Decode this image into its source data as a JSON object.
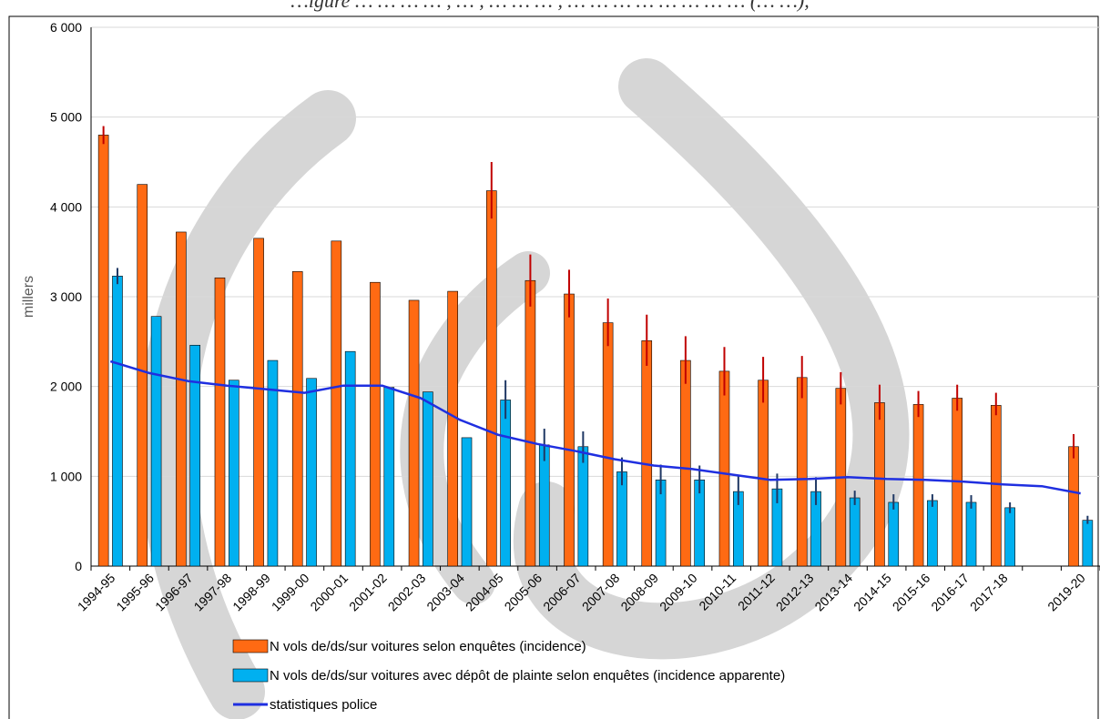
{
  "chart_data": {
    "type": "bar",
    "title": "",
    "title_strip": "…igure … … … … , … ,  … …  … , … … … … … … … … (… …),",
    "ylabel": "millers",
    "xlabel": "",
    "ylim": [
      0,
      6000
    ],
    "yticks": [
      0,
      1000,
      2000,
      3000,
      4000,
      5000,
      6000
    ],
    "ytick_labels": [
      "0",
      "1 000",
      "2 000",
      "3 000",
      "4 000",
      "5 000",
      "6 000"
    ],
    "grid": true,
    "legend_position": "bottom",
    "categories": [
      "1994-95",
      "1995-96",
      "1996-97",
      "1997-98",
      "1998-99",
      "1999-00",
      "2000-01",
      "2001-02",
      "2002-03",
      "2003-04",
      "2004-05",
      "2005-06",
      "2006-07",
      "2007-08",
      "2008-09",
      "2009-10",
      "2010-11",
      "2011-12",
      "2012-13",
      "2013-14",
      "2014-15",
      "2015-16",
      "2016-17",
      "2017-18",
      "2018-19",
      "2019-20"
    ],
    "tick_labels": [
      "1994-95",
      "1995-96",
      "1996-97",
      "1997-98",
      "1998-99",
      "1999-00",
      "2000-01",
      "2001-02",
      "2002-03",
      "2003-04",
      "2004-05",
      "2005-06",
      "2006-07",
      "2007-08",
      "2008-09",
      "2009-10",
      "2010-11",
      "2011-12",
      "2012-13",
      "2013-14",
      "2014-15",
      "2015-16",
      "2016-17",
      "2017-18",
      "",
      "2019-20"
    ],
    "series": [
      {
        "name": "N vols de/ds/sur voitures selon enquêtes (incidence)",
        "kind": "bar",
        "color": "#FF6A13",
        "error_color": "#C00000",
        "values": [
          4800,
          4250,
          3720,
          3210,
          3650,
          3280,
          3620,
          3160,
          2960,
          3060,
          4180,
          3180,
          3030,
          2710,
          2510,
          2290,
          2170,
          2070,
          2100,
          1980,
          1820,
          1800,
          1870,
          1790,
          null,
          1330
        ],
        "err_low": [
          4700,
          null,
          null,
          null,
          null,
          null,
          null,
          null,
          null,
          null,
          3870,
          2890,
          2770,
          2450,
          2230,
          2030,
          1900,
          1820,
          1870,
          1800,
          1630,
          1660,
          1730,
          1680,
          null,
          1200
        ],
        "err_high": [
          4900,
          null,
          null,
          null,
          null,
          null,
          null,
          null,
          null,
          null,
          4500,
          3470,
          3300,
          2980,
          2800,
          2560,
          2440,
          2330,
          2340,
          2160,
          2020,
          1950,
          2020,
          1930,
          null,
          1470
        ]
      },
      {
        "name": "N vols de/ds/sur voitures  avec dépôt de plainte selon enquêtes (incidence apparente)",
        "kind": "bar",
        "color": "#00B0F0",
        "error_color": "#1F3864",
        "values": [
          3230,
          2780,
          2460,
          2070,
          2290,
          2090,
          2390,
          1990,
          1940,
          1430,
          1850,
          1350,
          1330,
          1050,
          960,
          960,
          830,
          860,
          830,
          760,
          710,
          730,
          710,
          650,
          null,
          510
        ],
        "err_low": [
          3140,
          null,
          null,
          null,
          null,
          null,
          null,
          null,
          null,
          null,
          1640,
          1170,
          1150,
          900,
          800,
          810,
          680,
          700,
          680,
          680,
          630,
          660,
          640,
          590,
          null,
          470
        ],
        "err_high": [
          3320,
          null,
          null,
          null,
          null,
          null,
          null,
          null,
          null,
          null,
          2070,
          1530,
          1500,
          1210,
          1130,
          1120,
          1010,
          1030,
          990,
          840,
          800,
          800,
          790,
          710,
          null,
          560
        ]
      },
      {
        "name": "statistiques police",
        "kind": "line",
        "color": "#1F2FE0",
        "values": [
          2280,
          2150,
          2060,
          2010,
          1970,
          1930,
          2010,
          2010,
          1870,
          1630,
          1460,
          1360,
          1280,
          1190,
          1120,
          1080,
          1020,
          960,
          970,
          990,
          970,
          960,
          940,
          910,
          890,
          810
        ]
      }
    ]
  }
}
